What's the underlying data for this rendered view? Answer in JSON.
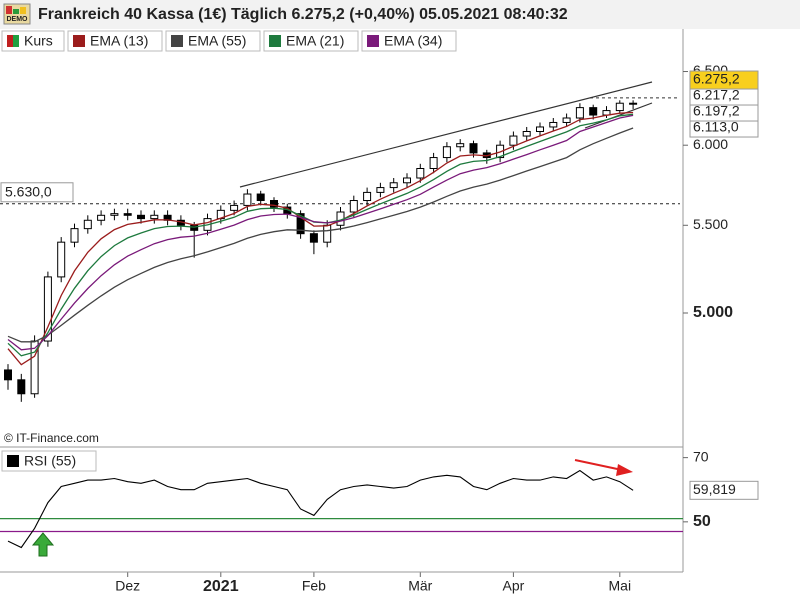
{
  "chart_data": [
    {
      "type": "candlestick",
      "title": "Frankreich 40 Kassa (1€) Täglich 6.275,2 (+0,40%) 05.05.2021 08:40:32",
      "source": "© IT-Finance.com",
      "log": true,
      "ylim": [
        4332,
        6800
      ],
      "yticks": [
        {
          "value": 6500,
          "label": "6.500"
        },
        {
          "value": 6000,
          "label": "6.000"
        },
        {
          "value": 5500,
          "label": "5.500"
        },
        {
          "value": 5000,
          "label": "5.000"
        }
      ],
      "categories": [
        null,
        null,
        null,
        null,
        null,
        null,
        null,
        null,
        null,
        "Dez",
        null,
        null,
        null,
        null,
        null,
        null,
        "2021",
        null,
        null,
        null,
        null,
        null,
        null,
        "Feb",
        null,
        null,
        null,
        null,
        null,
        null,
        null,
        "Mär",
        null,
        null,
        null,
        null,
        null,
        null,
        "Apr",
        null,
        null,
        null,
        null,
        null,
        null,
        null,
        "Mai",
        null
      ],
      "levels": [
        {
          "value": 5630,
          "label": "5.630,0"
        }
      ],
      "series": [
        {
          "name": "Kurs",
          "up_color": "#ffffff",
          "down_color": "#000000",
          "label_color": "#f8cf1e",
          "last_value_label": "6.275,2",
          "open": [
            4700,
            4650,
            4580,
            4850,
            5200,
            5400,
            5480,
            5530,
            5560,
            5570,
            5560,
            5540,
            5560,
            5530,
            5500,
            5470,
            5540,
            5590,
            5620,
            5690,
            5650,
            5610,
            5570,
            5450,
            5400,
            5500,
            5580,
            5650,
            5700,
            5730,
            5760,
            5790,
            5850,
            5920,
            5990,
            6010,
            5950,
            5920,
            6000,
            6060,
            6090,
            6120,
            6150,
            6180,
            6250,
            6200,
            6230,
            6280
          ],
          "high": [
            4730,
            4680,
            4880,
            5230,
            5430,
            5510,
            5560,
            5590,
            5600,
            5600,
            5590,
            5590,
            5590,
            5560,
            5520,
            5570,
            5620,
            5650,
            5720,
            5710,
            5670,
            5630,
            5590,
            5470,
            5530,
            5610,
            5680,
            5730,
            5760,
            5790,
            5820,
            5880,
            5950,
            6020,
            6040,
            6030,
            5970,
            6030,
            6090,
            6120,
            6150,
            6180,
            6210,
            6280,
            6270,
            6260,
            6300,
            6300
          ],
          "low": [
            4600,
            4540,
            4560,
            4820,
            5170,
            5370,
            5450,
            5500,
            5530,
            5530,
            5510,
            5510,
            5500,
            5470,
            5310,
            5440,
            5510,
            5560,
            5590,
            5620,
            5580,
            5540,
            5420,
            5330,
            5370,
            5470,
            5550,
            5620,
            5670,
            5700,
            5730,
            5760,
            5820,
            5890,
            5960,
            5920,
            5880,
            5890,
            5970,
            6030,
            6060,
            6090,
            6120,
            6150,
            6170,
            6180,
            6210,
            6240
          ],
          "close": [
            4650,
            4580,
            4850,
            5200,
            5400,
            5480,
            5530,
            5560,
            5570,
            5560,
            5540,
            5560,
            5530,
            5500,
            5470,
            5540,
            5590,
            5620,
            5690,
            5650,
            5610,
            5570,
            5450,
            5400,
            5500,
            5580,
            5650,
            5700,
            5730,
            5760,
            5790,
            5850,
            5920,
            5990,
            6010,
            5950,
            5920,
            6000,
            6060,
            6090,
            6120,
            6150,
            6180,
            6250,
            6200,
            6230,
            6280,
            6275.2
          ]
        },
        {
          "name": "EMA (13)",
          "color": "#9b1c1c",
          "last_value_label": "6.217,2",
          "values": [
            4810,
            4727,
            4771,
            4925,
            5096,
            5234,
            5341,
            5420,
            5474,
            5505,
            5518,
            5533,
            5532,
            5520,
            5502,
            5516,
            5543,
            5571,
            5614,
            5627,
            5621,
            5603,
            5548,
            5495,
            5497,
            5527,
            5571,
            5617,
            5658,
            5695,
            5729,
            5773,
            5826,
            5885,
            5930,
            5937,
            5931,
            5956,
            5993,
            6028,
            6061,
            6093,
            6124,
            6169,
            6180,
            6198,
            6212,
            6217.2
          ]
        },
        {
          "name": "EMA (55)",
          "color": "#444444",
          "last_value_label": "6.113,0",
          "values": [
            4875,
            4846,
            4846,
            4881,
            4933,
            4988,
            5042,
            5094,
            5142,
            5184,
            5220,
            5254,
            5282,
            5304,
            5321,
            5343,
            5368,
            5393,
            5423,
            5446,
            5462,
            5473,
            5471,
            5464,
            5468,
            5479,
            5496,
            5516,
            5538,
            5560,
            5583,
            5610,
            5641,
            5676,
            5709,
            5733,
            5752,
            5777,
            5805,
            5834,
            5862,
            5891,
            5920,
            5970,
            6010,
            6045,
            6080,
            6113.0
          ]
        },
        {
          "name": "EMA (21)",
          "color": "#1e7a3e",
          "values": [
            4838,
            4773,
            4792,
            4894,
            5021,
            5136,
            5235,
            5316,
            5380,
            5425,
            5454,
            5480,
            5493,
            5495,
            5489,
            5502,
            5524,
            5548,
            5584,
            5600,
            5603,
            5595,
            5558,
            5519,
            5514,
            5531,
            5561,
            5596,
            5630,
            5662,
            5694,
            5733,
            5780,
            5832,
            5877,
            5895,
            5901,
            5926,
            5960,
            5992,
            6024,
            6056,
            6087,
            6128,
            6146,
            6167,
            6195,
            6205
          ]
        },
        {
          "name": "EMA (34)",
          "color": "#7a1a7a",
          "last_value_label": "6.197,2",
          "values": [
            4858,
            4804,
            4812,
            4878,
            4967,
            5054,
            5135,
            5207,
            5269,
            5319,
            5356,
            5391,
            5415,
            5429,
            5436,
            5453,
            5476,
            5501,
            5534,
            5556,
            5565,
            5567,
            5547,
            5522,
            5514,
            5525,
            5546,
            5572,
            5599,
            5627,
            5655,
            5688,
            5733,
            5777,
            5817,
            5840,
            5856,
            5880,
            5910,
            5939,
            5970,
            6000,
            6031,
            6090,
            6120,
            6150,
            6180,
            6197.2
          ]
        }
      ]
    },
    {
      "type": "line",
      "ylim": [
        35,
        73
      ],
      "yticks": [
        70,
        50
      ],
      "levels": [
        {
          "value": 51,
          "color": "#2e8b3e"
        },
        {
          "value": 47,
          "color": "#8a1a8a"
        }
      ],
      "series": [
        {
          "name": "RSI (55)",
          "color": "#000000",
          "last_value_label": "59,819",
          "values": [
            44,
            42,
            48,
            56,
            61,
            62,
            63,
            63,
            63.5,
            62.5,
            62,
            63,
            61,
            60,
            60,
            62,
            62.5,
            63,
            63.5,
            62,
            61,
            60,
            54,
            52,
            57,
            60,
            61,
            61.5,
            61,
            60.5,
            61,
            63,
            64,
            64.5,
            64,
            61,
            60,
            62,
            63.5,
            63,
            63,
            64,
            63.5,
            66,
            63,
            64,
            62.5,
            59.819
          ]
        }
      ]
    }
  ]
}
